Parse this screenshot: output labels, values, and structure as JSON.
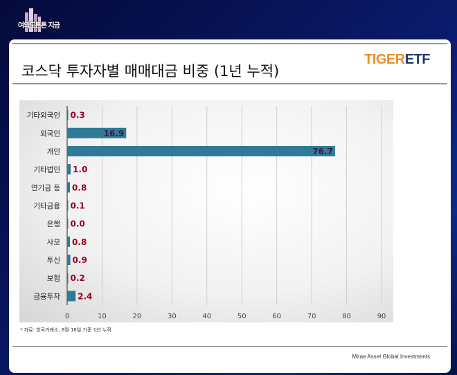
{
  "channel_logo": {
    "text": "여의도튼튼 지금"
  },
  "slide": {
    "title": "코스닥 투자자별 매매대금 비중 (1년 누적)",
    "brand_part1": "TIGER",
    "brand_part2": "ETF",
    "source": "* 자료: 한국거래소, 8월 18일 기준 1년 누적",
    "footer": "Mirae Asset Global Investments"
  },
  "colors": {
    "bar": "#2f7a96",
    "label": "#9a0020",
    "label_inside": "#3a1a4a"
  },
  "chart_data": {
    "type": "bar",
    "orientation": "horizontal",
    "categories": [
      "기타외국인",
      "외국인",
      "개인",
      "기타법인",
      "연기금 등",
      "기타금융",
      "은행",
      "사모",
      "투신",
      "보험",
      "금융투자"
    ],
    "values": [
      0.3,
      16.9,
      76.7,
      1.0,
      0.8,
      0.1,
      0.0,
      0.8,
      0.9,
      0.2,
      2.4
    ],
    "value_labels": [
      "0.3",
      "16.9",
      "76.7",
      "1.0",
      "0.8",
      "0.1",
      "0.0",
      "0.8",
      "0.9",
      "0.2",
      "2.4"
    ],
    "xlim": [
      0,
      90
    ],
    "xticks": [
      "0",
      "10",
      "20",
      "30",
      "40",
      "50",
      "60",
      "70",
      "80",
      "90"
    ],
    "grid": true,
    "legend": "none"
  }
}
